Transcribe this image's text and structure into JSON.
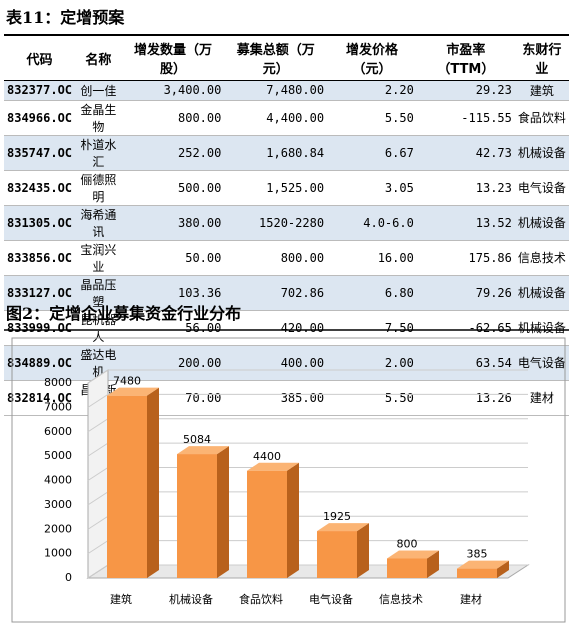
{
  "table_title": "表11：定增预案",
  "table": {
    "header": [
      "代码",
      "名称",
      "增发数量（万股）",
      "募集总额（万元）",
      "增发价格（元）",
      "市盈率（TTM）",
      "东财行业"
    ],
    "rows": [
      [
        "832377.OC",
        "创一佳",
        "3,400.00",
        "7,480.00",
        "2.20",
        "29.23",
        "建筑"
      ],
      [
        "834966.OC",
        "金晶生物",
        "800.00",
        "4,400.00",
        "5.50",
        "-115.55",
        "食品饮料"
      ],
      [
        "835747.OC",
        "朴道水汇",
        "252.00",
        "1,680.84",
        "6.67",
        "42.73",
        "机械设备"
      ],
      [
        "832435.OC",
        "俪德照明",
        "500.00",
        "1,525.00",
        "3.05",
        "13.23",
        "电气设备"
      ],
      [
        "831305.OC",
        "海希通讯",
        "380.00",
        "1520-2280",
        "4.0-6.0",
        "13.52",
        "机械设备"
      ],
      [
        "833856.OC",
        "宝润兴业",
        "50.00",
        "800.00",
        "16.00",
        "175.86",
        "信息技术"
      ],
      [
        "833127.OC",
        "晶品压塑",
        "103.36",
        "702.86",
        "6.80",
        "79.26",
        "机械设备"
      ],
      [
        "833999.OC",
        "昆机器人",
        "56.00",
        "420.00",
        "7.50",
        "-62.65",
        "机械设备"
      ],
      [
        "834889.OC",
        "盛达电机",
        "200.00",
        "400.00",
        "2.00",
        "63.54",
        "电气设备"
      ],
      [
        "832814.OC",
        "昌耀新材",
        "70.00",
        "385.00",
        "5.50",
        "13.26",
        "建材"
      ]
    ]
  },
  "figure_title": "图2：定增企业募集资金行业分布",
  "chart_data": {
    "type": "bar",
    "categories": [
      "建筑",
      "机械设备",
      "食品饮料",
      "电气设备",
      "信息技术",
      "建材"
    ],
    "values": [
      7480,
      5084,
      4400,
      1925,
      800,
      385
    ],
    "color": "#f79646",
    "ylim": [
      0,
      8000
    ],
    "yticks": [
      0,
      1000,
      2000,
      3000,
      4000,
      5000,
      6000,
      7000,
      8000
    ],
    "grid": true
  }
}
